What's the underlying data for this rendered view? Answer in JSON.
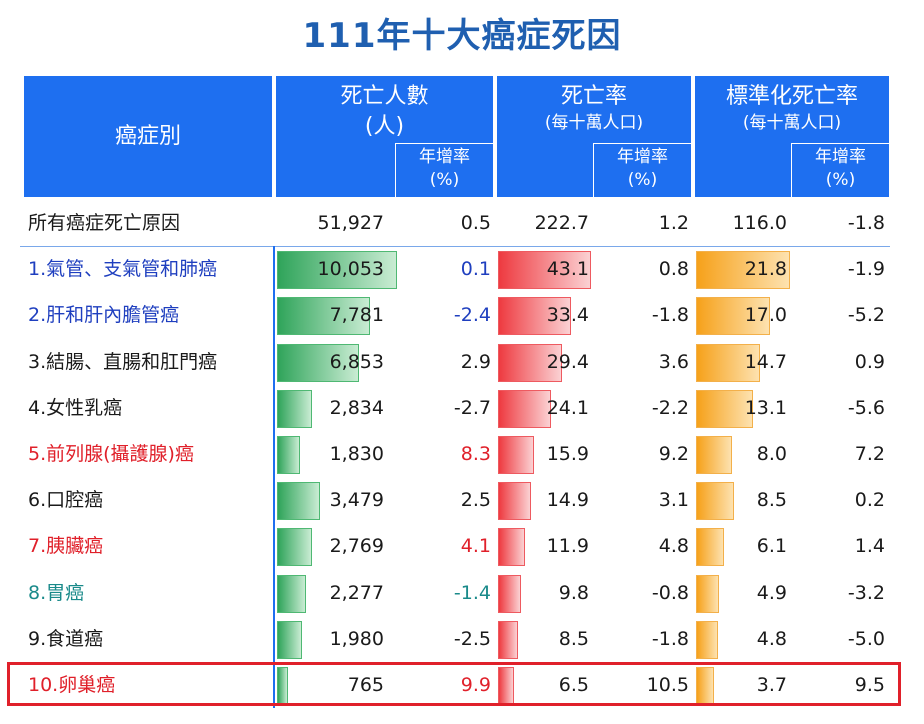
{
  "title": "111年十大癌症死因",
  "header": {
    "cancer": "癌症別",
    "deaths": "死亡人數",
    "deaths_unit": "(人)",
    "rate": "死亡率",
    "rate_unit": "(每十萬人口)",
    "std_rate": "標準化死亡率",
    "std_rate_unit": "(每十萬人口)",
    "growth": "年增率",
    "growth_unit": "(%)"
  },
  "colors": {
    "header_bg": "#1e6ff0",
    "title": "#1f5fb0",
    "deaths_bar": "#2fa45a",
    "rate_bar": "#ee3a40",
    "std_bar": "#f6a11a",
    "highlight": "#e0202a"
  },
  "chart_data": {
    "type": "table",
    "title": "111年十大癌症死因",
    "columns": [
      "癌症別",
      "死亡人數(人)",
      "年增率(%)",
      "死亡率(每十萬人口)",
      "年增率(%)",
      "標準化死亡率(每十萬人口)",
      "年增率(%)"
    ],
    "rows": [
      {
        "name": "所有癌症死亡原因",
        "deaths": "51,927",
        "deaths_value": 51927,
        "deaths_growth": "0.5",
        "rate": "222.7",
        "rate_value": 222.7,
        "rate_growth": "1.2",
        "std": "116.0",
        "std_value": 116.0,
        "std_growth": "-1.8",
        "name_color": "#1a1a1a",
        "growth_color": "#1a1a1a",
        "bar": false
      },
      {
        "name": "1.氣管、支氣管和肺癌",
        "deaths": "10,053",
        "deaths_value": 10053,
        "deaths_growth": "0.1",
        "rate": "43.1",
        "rate_value": 43.1,
        "rate_growth": "0.8",
        "std": "21.8",
        "std_value": 21.8,
        "std_growth": "-1.9",
        "name_color": "#1f3fbf",
        "growth_color": "#1f3fbf",
        "bar": true
      },
      {
        "name": "2.肝和肝內膽管癌",
        "deaths": "7,781",
        "deaths_value": 7781,
        "deaths_growth": "-2.4",
        "rate": "33.4",
        "rate_value": 33.4,
        "rate_growth": "-1.8",
        "std": "17.0",
        "std_value": 17.0,
        "std_growth": "-5.2",
        "name_color": "#1f3fbf",
        "growth_color": "#1f3fbf",
        "bar": true
      },
      {
        "name": "3.結腸、直腸和肛門癌",
        "deaths": "6,853",
        "deaths_value": 6853,
        "deaths_growth": "2.9",
        "rate": "29.4",
        "rate_value": 29.4,
        "rate_growth": "3.6",
        "std": "14.7",
        "std_value": 14.7,
        "std_growth": "0.9",
        "name_color": "#1a1a1a",
        "growth_color": "#1a1a1a",
        "bar": true
      },
      {
        "name": "4.女性乳癌",
        "deaths": "2,834",
        "deaths_value": 2834,
        "deaths_growth": "-2.7",
        "rate": "24.1",
        "rate_value": 24.1,
        "rate_growth": "-2.2",
        "std": "13.1",
        "std_value": 13.1,
        "std_growth": "-5.6",
        "name_color": "#1a1a1a",
        "growth_color": "#1a1a1a",
        "bar": true
      },
      {
        "name": "5.前列腺(攝護腺)癌",
        "deaths": "1,830",
        "deaths_value": 1830,
        "deaths_growth": "8.3",
        "rate": "15.9",
        "rate_value": 15.9,
        "rate_growth": "9.2",
        "std": "8.0",
        "std_value": 8.0,
        "std_growth": "7.2",
        "name_color": "#e0202a",
        "growth_color": "#e0202a",
        "bar": true
      },
      {
        "name": "6.口腔癌",
        "deaths": "3,479",
        "deaths_value": 3479,
        "deaths_growth": "2.5",
        "rate": "14.9",
        "rate_value": 14.9,
        "rate_growth": "3.1",
        "std": "8.5",
        "std_value": 8.5,
        "std_growth": "0.2",
        "name_color": "#1a1a1a",
        "growth_color": "#1a1a1a",
        "bar": true
      },
      {
        "name": "7.胰臟癌",
        "deaths": "2,769",
        "deaths_value": 2769,
        "deaths_growth": "4.1",
        "rate": "11.9",
        "rate_value": 11.9,
        "rate_growth": "4.8",
        "std": "6.1",
        "std_value": 6.1,
        "std_growth": "1.4",
        "name_color": "#e0202a",
        "growth_color": "#e0202a",
        "bar": true
      },
      {
        "name": "8.胃癌",
        "deaths": "2,277",
        "deaths_value": 2277,
        "deaths_growth": "-1.4",
        "rate": "9.8",
        "rate_value": 9.8,
        "rate_growth": "-0.8",
        "std": "4.9",
        "std_value": 4.9,
        "std_growth": "-3.2",
        "name_color": "#1a8a8a",
        "growth_color": "#1a8a8a",
        "bar": true
      },
      {
        "name": "9.食道癌",
        "deaths": "1,980",
        "deaths_value": 1980,
        "deaths_growth": "-2.5",
        "rate": "8.5",
        "rate_value": 8.5,
        "rate_growth": "-1.8",
        "std": "4.8",
        "std_value": 4.8,
        "std_growth": "-5.0",
        "name_color": "#1a1a1a",
        "growth_color": "#1a1a1a",
        "bar": true
      },
      {
        "name": "10.卵巢癌",
        "deaths": "765",
        "deaths_value": 765,
        "deaths_growth": "9.9",
        "rate": "6.5",
        "rate_value": 6.5,
        "rate_growth": "10.5",
        "std": "3.7",
        "std_value": 3.7,
        "std_growth": "9.5",
        "name_color": "#e0202a",
        "growth_color": "#e0202a",
        "bar": true
      }
    ]
  }
}
